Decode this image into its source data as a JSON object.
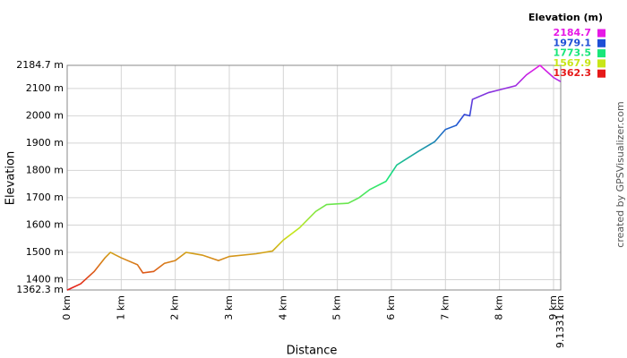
{
  "chart_data": {
    "type": "line",
    "xlabel": "Distance",
    "ylabel": "Elevation",
    "credit": "created by GPSVisualizer.com",
    "x": [
      0,
      0.25,
      0.5,
      0.7,
      0.8,
      1.0,
      1.3,
      1.4,
      1.6,
      1.8,
      2.0,
      2.2,
      2.5,
      2.8,
      3.0,
      3.5,
      3.8,
      4.0,
      4.3,
      4.6,
      4.8,
      5.2,
      5.4,
      5.6,
      5.9,
      6.1,
      6.5,
      6.8,
      7.0,
      7.2,
      7.35,
      7.45,
      7.5,
      7.8,
      8.0,
      8.3,
      8.5,
      8.75,
      9.0,
      9.1331
    ],
    "series": [
      {
        "name": "Elevation",
        "values": [
          1362,
          1385,
          1430,
          1480,
          1500,
          1480,
          1455,
          1425,
          1430,
          1460,
          1470,
          1500,
          1490,
          1470,
          1485,
          1495,
          1505,
          1545,
          1590,
          1650,
          1675,
          1680,
          1700,
          1730,
          1760,
          1820,
          1870,
          1905,
          1950,
          1965,
          2005,
          2000,
          2060,
          2085,
          2095,
          2110,
          2150,
          2184.7,
          2140,
          2125
        ]
      }
    ],
    "xlim": [
      0,
      9.1331
    ],
    "ylim": [
      1362.3,
      2184.7
    ],
    "xticks": [
      {
        "value": 0,
        "label": "0 km"
      },
      {
        "value": 1,
        "label": "1 km"
      },
      {
        "value": 2,
        "label": "2 km"
      },
      {
        "value": 3,
        "label": "3 km"
      },
      {
        "value": 4,
        "label": "4 km"
      },
      {
        "value": 5,
        "label": "5 km"
      },
      {
        "value": 6,
        "label": "6 km"
      },
      {
        "value": 7,
        "label": "7 km"
      },
      {
        "value": 8,
        "label": "8 km"
      },
      {
        "value": 9,
        "label": "9 km"
      },
      {
        "value": 9.1331,
        "label": "9.1331 km"
      }
    ],
    "yticks": [
      {
        "value": 1362.3,
        "label": "1362.3 m"
      },
      {
        "value": 1400,
        "label": "1400 m"
      },
      {
        "value": 1500,
        "label": "1500 m"
      },
      {
        "value": 1600,
        "label": "1600 m"
      },
      {
        "value": 1700,
        "label": "1700 m"
      },
      {
        "value": 1800,
        "label": "1800 m"
      },
      {
        "value": 1900,
        "label": "1900 m"
      },
      {
        "value": 2000,
        "label": "2000 m"
      },
      {
        "value": 2100,
        "label": "2100 m"
      },
      {
        "value": 2184.7,
        "label": "2184.7 m"
      }
    ],
    "grid": true,
    "color_scale": {
      "title": "Elevation (m)",
      "values": [
        2184.7,
        1979.1,
        1773.5,
        1567.9,
        1362.3
      ],
      "colors": [
        "#e619e6",
        "#1f4fd6",
        "#19e67a",
        "#c8e619",
        "#e61919"
      ]
    }
  }
}
